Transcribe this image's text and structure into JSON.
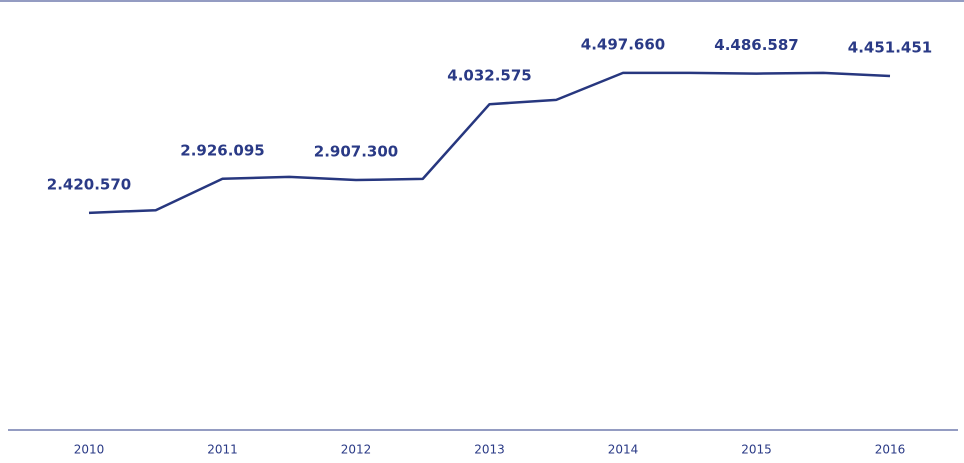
{
  "chart_data": {
    "type": "line",
    "categories": [
      "2010",
      null,
      "2011",
      null,
      "2012",
      null,
      "2013",
      null,
      "2014",
      null,
      "2015",
      null,
      "2016"
    ],
    "series": [
      {
        "color": "#27377f",
        "values": [
          2420570,
          2460000,
          2926095,
          2955000,
          2907300,
          2925000,
          4032575,
          4097000,
          4497660,
          4498000,
          4486587,
          4497000,
          4451451
        ],
        "value_labels": [
          "2.420.570",
          null,
          "2.926.095",
          null,
          "2.907.300",
          null,
          "4.032.575",
          null,
          "4.497.660",
          null,
          "4.486.587",
          null,
          "4.451.451"
        ]
      }
    ],
    "ylim": [
      0,
      5000000
    ]
  }
}
